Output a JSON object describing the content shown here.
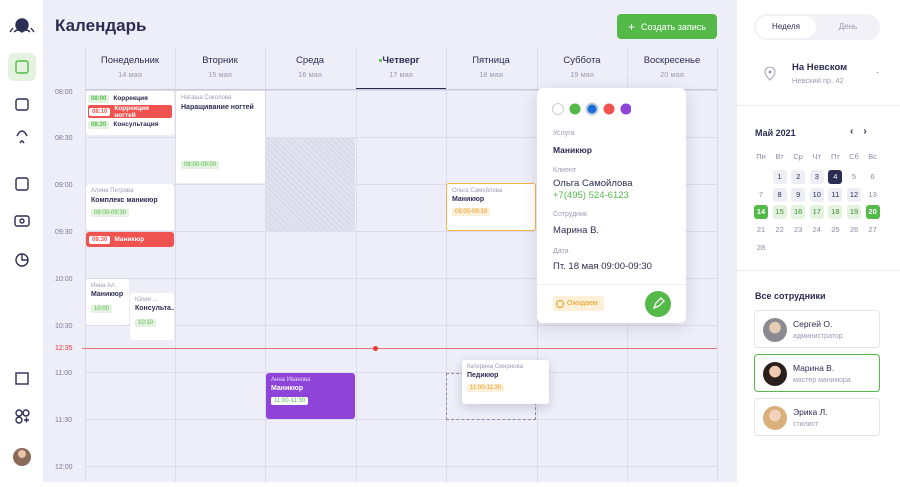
{
  "header": {
    "title": "Календарь",
    "button": "Создать запись"
  },
  "days": [
    {
      "name": "Понедельник",
      "date": "14 мая"
    },
    {
      "name": "Вторник",
      "date": "15 мая"
    },
    {
      "name": "Среда",
      "date": "16 мая"
    },
    {
      "name": "Четверг",
      "date": "17 мая"
    },
    {
      "name": "Пятница",
      "date": "18 мая"
    },
    {
      "name": "Суббота",
      "date": "19 мая"
    },
    {
      "name": "Воскресенье",
      "date": "20 мая"
    }
  ],
  "times": [
    "08:00",
    "08:30",
    "09:00",
    "09:30",
    "10:00",
    "10:30",
    "11:00",
    "11:30",
    "12:00"
  ],
  "now_time": "12:35",
  "mini_events": [
    {
      "time": "08:00",
      "service": "Коррекция"
    },
    {
      "time": "08:10",
      "service": "Коррекция ногтей"
    },
    {
      "time": "08:20",
      "service": "Консультация"
    }
  ],
  "events": [
    {
      "client": "Наташа Соколова",
      "service": "Наращивание ногтей",
      "time": "08:00-09:00"
    },
    {
      "client": "Алина Петрова",
      "service": "Комплекс маникюр",
      "time": "09:00-09:30"
    },
    {
      "time": "09:30",
      "service": "Маникюр"
    },
    {
      "client": "Инна Ал.",
      "service": "Маникюр",
      "time": "10:00"
    },
    {
      "client": "Юлия ...",
      "service": "Консульта...",
      "time": "10:10"
    },
    {
      "client": "Анна Иванова",
      "service": "Маникюр",
      "time": "11:00-11:30"
    },
    {
      "client": "Ольга Самойлова",
      "service": "Маникюр",
      "time": "09:00-09:30"
    },
    {
      "client": "Катерина Смирнова",
      "service": "Педикюр",
      "time": "11:00-11:30"
    }
  ],
  "popup": {
    "service_label": "Услуга",
    "service": "Маникюр",
    "client_label": "Клиент",
    "client": "Ольга Самойлова",
    "phone": "+7(495) 524-6123",
    "employee_label": "Сотрудник",
    "employee": "Марина В.",
    "date_label": "Дата",
    "date": "Пт. 18 мая 09:00-09:30",
    "status": "Ожидаем"
  },
  "sidebar": {
    "tabs": [
      "Неделя",
      "День"
    ],
    "location": {
      "name": "На Невском",
      "address": "Невский пр. 42"
    },
    "calendar": {
      "month": "Май 2021",
      "weekdays": [
        "Пн",
        "Вт",
        "Ср",
        "Чт",
        "Пт",
        "Сб",
        "Вс"
      ],
      "weeks": [
        [
          null,
          "1",
          "2",
          "3",
          "4",
          "5",
          "6"
        ],
        [
          "7",
          "8",
          "9",
          "10",
          "11",
          "12",
          "13"
        ],
        [
          "14",
          "15",
          "16",
          "17",
          "18",
          "19",
          "20"
        ],
        [
          "21",
          "22",
          "23",
          "24",
          "25",
          "26",
          "27"
        ],
        [
          "28"
        ]
      ]
    },
    "staff_title": "Все сотрудники",
    "staff": [
      {
        "name": "Сергей О.",
        "role": "администратор"
      },
      {
        "name": "Марина В.",
        "role": "мастер маникюра"
      },
      {
        "name": "Эрика Л.",
        "role": "стилист"
      }
    ]
  }
}
